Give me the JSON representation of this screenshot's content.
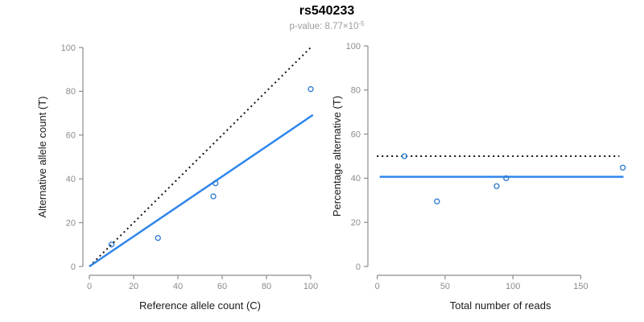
{
  "header": {
    "title": "rs540233",
    "subtitle_prefix": "p-value: 8.77×10",
    "subtitle_exponent": "-5"
  },
  "colors": {
    "line_blue": "#2E86EC",
    "point_blue": "#2878CE",
    "dotted_black": "#111111",
    "axis_gray": "#8C8C8C",
    "axis_title": "#1A1A1A"
  },
  "chart_data": [
    {
      "type": "scatter",
      "name": "allele-counts-plot",
      "xlabel": "Reference allele count (C)",
      "ylabel": "Alternative allele count (T)",
      "xlim": [
        0,
        100
      ],
      "ylim": [
        0,
        100
      ],
      "xticks": [
        0,
        20,
        40,
        60,
        80,
        100
      ],
      "yticks": [
        0,
        20,
        40,
        60,
        80,
        100
      ],
      "grid": false,
      "legend": null,
      "points": [
        [
          10,
          10
        ],
        [
          31,
          13
        ],
        [
          56,
          32
        ],
        [
          57,
          38
        ],
        [
          100,
          81
        ]
      ],
      "lines": [
        {
          "name": "identity-line",
          "style": "dotted",
          "color_key": "dotted_black",
          "from": [
            0,
            0
          ],
          "to": [
            100.5,
            100.5
          ]
        },
        {
          "name": "regression-line",
          "style": "solid",
          "color_key": "line_blue",
          "from": [
            0,
            0
          ],
          "to": [
            101,
            69.2
          ]
        }
      ]
    },
    {
      "type": "scatter",
      "name": "reads-percentage-plot",
      "xlabel": "Total number of reads",
      "ylabel": "Percentage alternative (T)",
      "xlim": [
        0,
        181.5
      ],
      "ylim": [
        0,
        100
      ],
      "xticks": [
        0,
        50,
        100,
        150
      ],
      "yticks": [
        0,
        20,
        40,
        60,
        80,
        100
      ],
      "grid": false,
      "legend": null,
      "points": [
        [
          20,
          50
        ],
        [
          44,
          29.5
        ],
        [
          88,
          36.4
        ],
        [
          95,
          40
        ],
        [
          181,
          44.8
        ]
      ],
      "lines": [
        {
          "name": "expected-ratio-line",
          "style": "dotted",
          "color_key": "dotted_black",
          "from": [
            -0.3,
            50
          ],
          "to": [
            178.5,
            50
          ]
        },
        {
          "name": "mean-percentage-line",
          "style": "solid",
          "color_key": "line_blue",
          "from": [
            1.8,
            40.65
          ],
          "to": [
            181.5,
            40.65
          ]
        }
      ]
    }
  ]
}
